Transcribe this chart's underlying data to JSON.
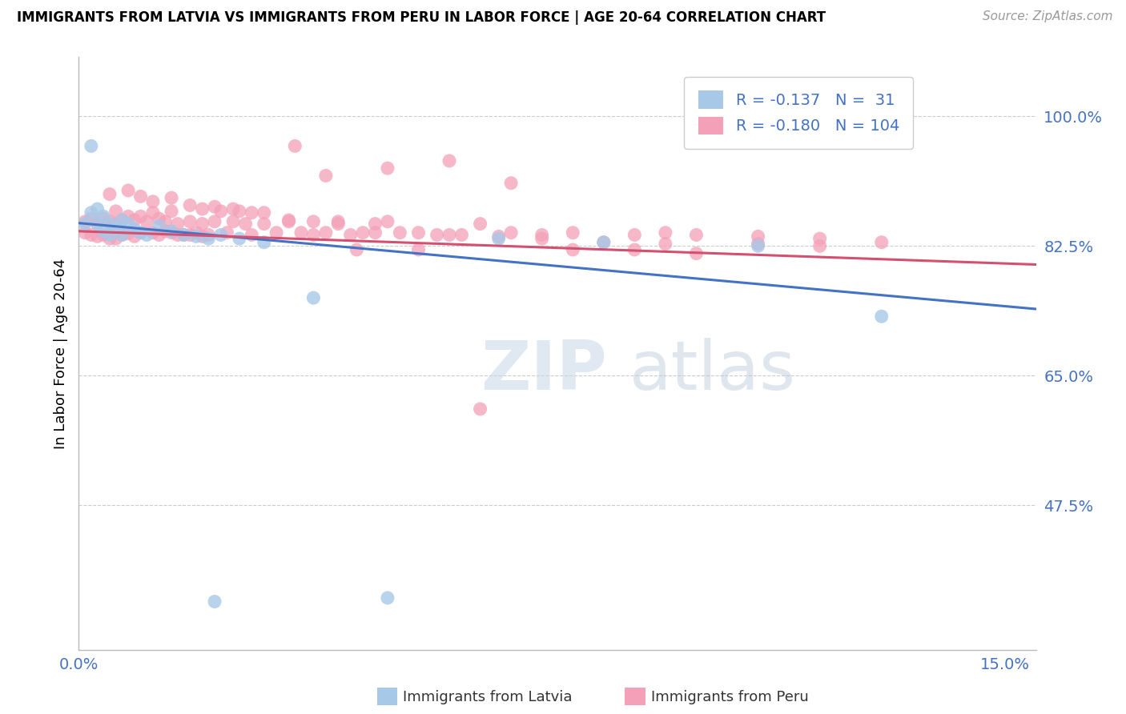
{
  "title": "IMMIGRANTS FROM LATVIA VS IMMIGRANTS FROM PERU IN LABOR FORCE | AGE 20-64 CORRELATION CHART",
  "source": "Source: ZipAtlas.com",
  "ylabel": "In Labor Force | Age 20-64",
  "xlim": [
    0.0,
    0.155
  ],
  "ylim": [
    0.28,
    1.08
  ],
  "xtick_values": [
    0.0,
    0.15
  ],
  "xtick_labels": [
    "0.0%",
    "15.0%"
  ],
  "ytick_values": [
    1.0,
    0.825,
    0.65,
    0.475
  ],
  "ytick_labels": [
    "100.0%",
    "82.5%",
    "65.0%",
    "47.5%"
  ],
  "latvia_color": "#a8c8e8",
  "peru_color": "#f4a0b8",
  "latvia_line_color": "#4472c4",
  "peru_line_color": "#d45070",
  "latvia_R": -0.137,
  "latvia_N": 31,
  "peru_R": -0.18,
  "peru_N": 104,
  "watermark_zip": "ZIP",
  "watermark_atlas": "atlas",
  "legend_label_latvia": "Immigrants from Latvia",
  "legend_label_peru": "Immigrants from Peru",
  "latvia_trend_x": [
    0.0,
    0.155
  ],
  "latvia_trend_y": [
    0.856,
    0.74
  ],
  "peru_trend_x": [
    0.0,
    0.155
  ],
  "peru_trend_y": [
    0.845,
    0.8
  ],
  "latvia_x": [
    0.001,
    0.002,
    0.003,
    0.003,
    0.004,
    0.004,
    0.005,
    0.005,
    0.006,
    0.007,
    0.007,
    0.008,
    0.009,
    0.01,
    0.011,
    0.013,
    0.015,
    0.017,
    0.019,
    0.021,
    0.023,
    0.026,
    0.03,
    0.038,
    0.05,
    0.068,
    0.085,
    0.11,
    0.13,
    0.022,
    0.002
  ],
  "latvia_y": [
    0.855,
    0.87,
    0.875,
    0.855,
    0.845,
    0.865,
    0.855,
    0.84,
    0.85,
    0.86,
    0.84,
    0.855,
    0.848,
    0.843,
    0.84,
    0.852,
    0.845,
    0.84,
    0.838,
    0.835,
    0.84,
    0.835,
    0.83,
    0.755,
    0.35,
    0.835,
    0.83,
    0.825,
    0.73,
    0.345,
    0.96
  ],
  "peru_x": [
    0.001,
    0.001,
    0.002,
    0.002,
    0.003,
    0.003,
    0.004,
    0.004,
    0.005,
    0.005,
    0.006,
    0.006,
    0.006,
    0.007,
    0.007,
    0.008,
    0.008,
    0.009,
    0.009,
    0.01,
    0.01,
    0.011,
    0.012,
    0.012,
    0.013,
    0.013,
    0.014,
    0.015,
    0.015,
    0.016,
    0.017,
    0.018,
    0.019,
    0.02,
    0.021,
    0.022,
    0.023,
    0.024,
    0.025,
    0.026,
    0.027,
    0.028,
    0.03,
    0.032,
    0.034,
    0.036,
    0.038,
    0.04,
    0.042,
    0.044,
    0.046,
    0.048,
    0.05,
    0.055,
    0.06,
    0.065,
    0.07,
    0.075,
    0.08,
    0.09,
    0.095,
    0.1,
    0.11,
    0.12,
    0.13,
    0.005,
    0.008,
    0.01,
    0.012,
    0.015,
    0.018,
    0.02,
    0.022,
    0.025,
    0.028,
    0.03,
    0.034,
    0.038,
    0.042,
    0.048,
    0.052,
    0.058,
    0.062,
    0.068,
    0.075,
    0.085,
    0.095,
    0.11,
    0.12,
    0.04,
    0.05,
    0.06,
    0.07,
    0.08,
    0.09,
    0.1,
    0.035,
    0.045,
    0.055,
    0.065,
    0.014,
    0.016,
    0.018,
    0.02
  ],
  "peru_y": [
    0.858,
    0.843,
    0.862,
    0.84,
    0.855,
    0.838,
    0.862,
    0.84,
    0.858,
    0.835,
    0.872,
    0.855,
    0.835,
    0.86,
    0.84,
    0.865,
    0.842,
    0.86,
    0.838,
    0.865,
    0.843,
    0.858,
    0.87,
    0.843,
    0.862,
    0.84,
    0.858,
    0.872,
    0.843,
    0.855,
    0.84,
    0.858,
    0.843,
    0.855,
    0.84,
    0.858,
    0.872,
    0.843,
    0.858,
    0.872,
    0.855,
    0.84,
    0.855,
    0.843,
    0.858,
    0.843,
    0.84,
    0.843,
    0.858,
    0.84,
    0.843,
    0.855,
    0.858,
    0.843,
    0.84,
    0.855,
    0.843,
    0.84,
    0.843,
    0.84,
    0.843,
    0.84,
    0.838,
    0.835,
    0.83,
    0.895,
    0.9,
    0.892,
    0.885,
    0.89,
    0.88,
    0.875,
    0.878,
    0.875,
    0.87,
    0.87,
    0.86,
    0.858,
    0.855,
    0.843,
    0.843,
    0.84,
    0.84,
    0.838,
    0.835,
    0.83,
    0.828,
    0.828,
    0.825,
    0.92,
    0.93,
    0.94,
    0.91,
    0.82,
    0.82,
    0.815,
    0.96,
    0.82,
    0.82,
    0.605,
    0.845,
    0.84,
    0.84,
    0.838
  ]
}
